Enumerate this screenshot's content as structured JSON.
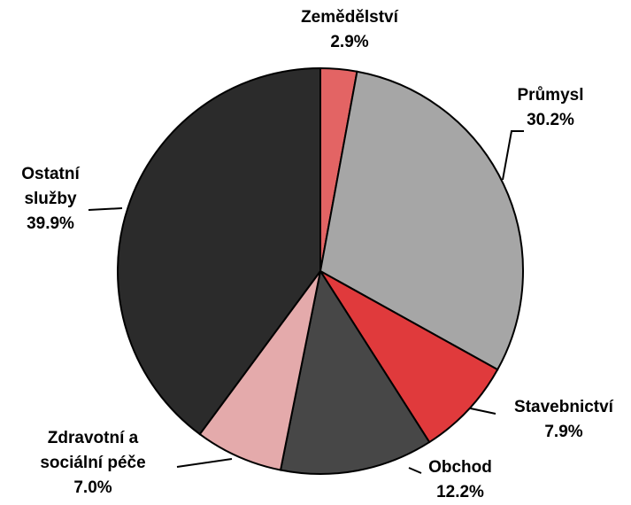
{
  "chart_data": {
    "type": "pie",
    "categories": [
      "Zemědělství",
      "Průmysl",
      "Stavebnictví",
      "Obchod",
      "Zdravotní a sociální péče",
      "Ostatní služby"
    ],
    "values": [
      2.9,
      30.2,
      7.9,
      12.2,
      7.0,
      39.9
    ],
    "value_labels": [
      "2.9%",
      "30.2%",
      "7.9%",
      "12.2%",
      "7.0%",
      "39.9%"
    ],
    "colors": [
      "#e36464",
      "#a6a6a6",
      "#e03a3c",
      "#474747",
      "#e4aaab",
      "#2b2b2b"
    ]
  }
}
